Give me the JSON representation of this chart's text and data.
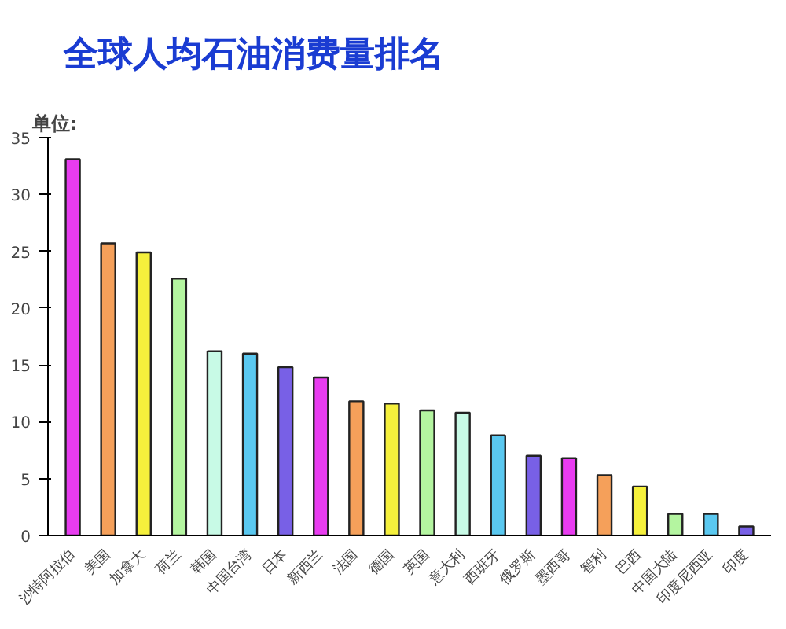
{
  "chart_data": {
    "type": "bar",
    "title": "全球人均石油消费量排名",
    "annotations": [
      "单位:"
    ],
    "categories": [
      "沙特阿拉伯",
      "美国",
      "加拿大",
      "荷兰",
      "韩国",
      "中国台湾",
      "日本",
      "新西兰",
      "法国",
      "德国",
      "英国",
      "意大利",
      "西班牙",
      "俄罗斯",
      "墨西哥",
      "智利",
      "巴西",
      "中国大陆",
      "印度尼西亚",
      "印度"
    ],
    "values": [
      33.1,
      25.7,
      24.9,
      22.6,
      16.2,
      16.0,
      14.8,
      13.9,
      11.8,
      11.6,
      11.0,
      10.8,
      8.8,
      7.0,
      6.8,
      5.3,
      4.3,
      1.9,
      1.9,
      0.8
    ],
    "colors": [
      "#e83cf0",
      "#f5a05a",
      "#f5f03c",
      "#b4f5a0",
      "#c8fae6",
      "#5ac8f0",
      "#7860e6",
      "#e83cf0",
      "#f5a05a",
      "#f5f03c",
      "#b4f5a0",
      "#c8fae6",
      "#5ac8f0",
      "#7860e6",
      "#e83cf0",
      "#f5a05a",
      "#f5f03c",
      "#b4f5a0",
      "#5ac8f0",
      "#7860e6"
    ],
    "ylim": [
      0,
      35
    ],
    "yticks": [
      0,
      5,
      10,
      15,
      20,
      25,
      30,
      35
    ],
    "grid": false
  }
}
